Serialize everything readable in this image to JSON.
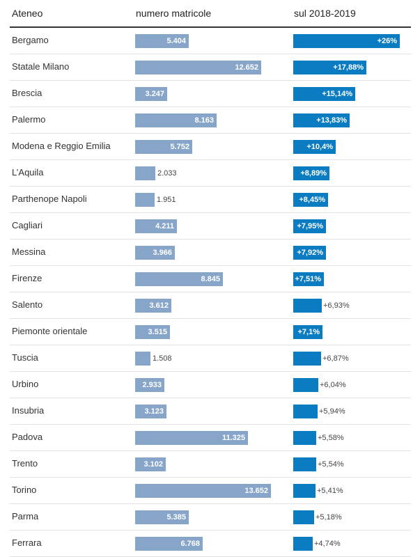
{
  "chart_data": {
    "type": "table",
    "columns": [
      "Ateneo",
      "numero matricole",
      "sul 2018-2019"
    ],
    "rows": [
      {
        "ateneo": "Bergamo",
        "matricole": 5404,
        "matricole_label": "5.404",
        "variazione": 26,
        "variazione_label": "+26%"
      },
      {
        "ateneo": "Statale Milano",
        "matricole": 12652,
        "matricole_label": "12.652",
        "variazione": 17.88,
        "variazione_label": "+17,88%"
      },
      {
        "ateneo": "Brescia",
        "matricole": 3247,
        "matricole_label": "3.247",
        "variazione": 15.14,
        "variazione_label": "+15,14%"
      },
      {
        "ateneo": "Palermo",
        "matricole": 8163,
        "matricole_label": "8.163",
        "variazione": 13.83,
        "variazione_label": "+13,83%"
      },
      {
        "ateneo": "Modena e Reggio Emilia",
        "matricole": 5752,
        "matricole_label": "5.752",
        "variazione": 10.4,
        "variazione_label": "+10,4%"
      },
      {
        "ateneo": "L’Aquila",
        "matricole": 2033,
        "matricole_label": "2.033",
        "variazione": 8.89,
        "variazione_label": "+8,89%"
      },
      {
        "ateneo": "Parthenope Napoli",
        "matricole": 1951,
        "matricole_label": "1.951",
        "variazione": 8.45,
        "variazione_label": "+8,45%"
      },
      {
        "ateneo": "Cagliari",
        "matricole": 4211,
        "matricole_label": "4.211",
        "variazione": 7.95,
        "variazione_label": "+7,95%"
      },
      {
        "ateneo": "Messina",
        "matricole": 3966,
        "matricole_label": "3.966",
        "variazione": 7.92,
        "variazione_label": "+7,92%"
      },
      {
        "ateneo": "Firenze",
        "matricole": 8845,
        "matricole_label": "8.845",
        "variazione": 7.51,
        "variazione_label": "+7,51%"
      },
      {
        "ateneo": "Salento",
        "matricole": 3612,
        "matricole_label": "3.612",
        "variazione": 6.93,
        "variazione_label": "+6,93%"
      },
      {
        "ateneo": "Piemonte orientale",
        "matricole": 3515,
        "matricole_label": "3.515",
        "variazione": 7.1,
        "variazione_label": "+7,1%"
      },
      {
        "ateneo": "Tuscia",
        "matricole": 1508,
        "matricole_label": "1.508",
        "variazione": 6.87,
        "variazione_label": "+6,87%"
      },
      {
        "ateneo": "Urbino",
        "matricole": 2933,
        "matricole_label": "2.933",
        "variazione": 6.04,
        "variazione_label": "+6,04%"
      },
      {
        "ateneo": "Insubria",
        "matricole": 3123,
        "matricole_label": "3.123",
        "variazione": 5.94,
        "variazione_label": "+5,94%"
      },
      {
        "ateneo": "Padova",
        "matricole": 11325,
        "matricole_label": "11.325",
        "variazione": 5.58,
        "variazione_label": "+5,58%"
      },
      {
        "ateneo": "Trento",
        "matricole": 3102,
        "matricole_label": "3.102",
        "variazione": 5.54,
        "variazione_label": "+5,54%"
      },
      {
        "ateneo": "Torino",
        "matricole": 13652,
        "matricole_label": "13.652",
        "variazione": 5.41,
        "variazione_label": "+5,41%"
      },
      {
        "ateneo": "Parma",
        "matricole": 5385,
        "matricole_label": "5.385",
        "variazione": 5.18,
        "variazione_label": "+5,18%"
      },
      {
        "ateneo": "Ferrara",
        "matricole": 6768,
        "matricole_label": "6.768",
        "variazione": 4.74,
        "variazione_label": "+4,74%"
      }
    ]
  },
  "header": {
    "ateneo": "Ateneo",
    "matricole": "numero matricole",
    "variazione": "sul 2018-2019"
  },
  "colors": {
    "bar_matricole": "#87a5c8",
    "bar_variazione": "#0b7cc1"
  }
}
